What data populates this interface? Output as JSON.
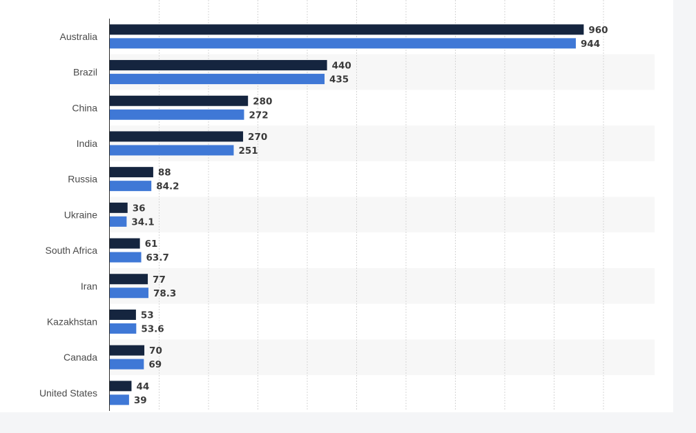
{
  "chart_data": {
    "type": "bar",
    "orientation": "horizontal",
    "categories": [
      "Australia",
      "Brazil",
      "China",
      "India",
      "Russia",
      "Ukraine",
      "South Africa",
      "Iran",
      "Kazakhstan",
      "Canada",
      "United States"
    ],
    "series": [
      {
        "color": "#15253f",
        "values": [
          960,
          440,
          280,
          270,
          88,
          36,
          61,
          77,
          53,
          70,
          44
        ],
        "labels": [
          "960",
          "440",
          "280",
          "270",
          "88",
          "36",
          "61",
          "77",
          "53",
          "70",
          "44"
        ]
      },
      {
        "color": "#3f78d6",
        "values": [
          944,
          435,
          272,
          251,
          84.2,
          34.1,
          63.7,
          78.3,
          53.6,
          69,
          39
        ],
        "labels": [
          "944",
          "435",
          "272",
          "251",
          "84.2",
          "34.1",
          "63.7",
          "78.3",
          "53.6",
          "69",
          "39"
        ]
      }
    ],
    "xlim": [
      0,
      1100
    ],
    "x_gridlines": [
      100,
      200,
      300,
      400,
      500,
      600,
      700,
      800,
      900,
      1000
    ],
    "grid": true,
    "legend": "none"
  }
}
